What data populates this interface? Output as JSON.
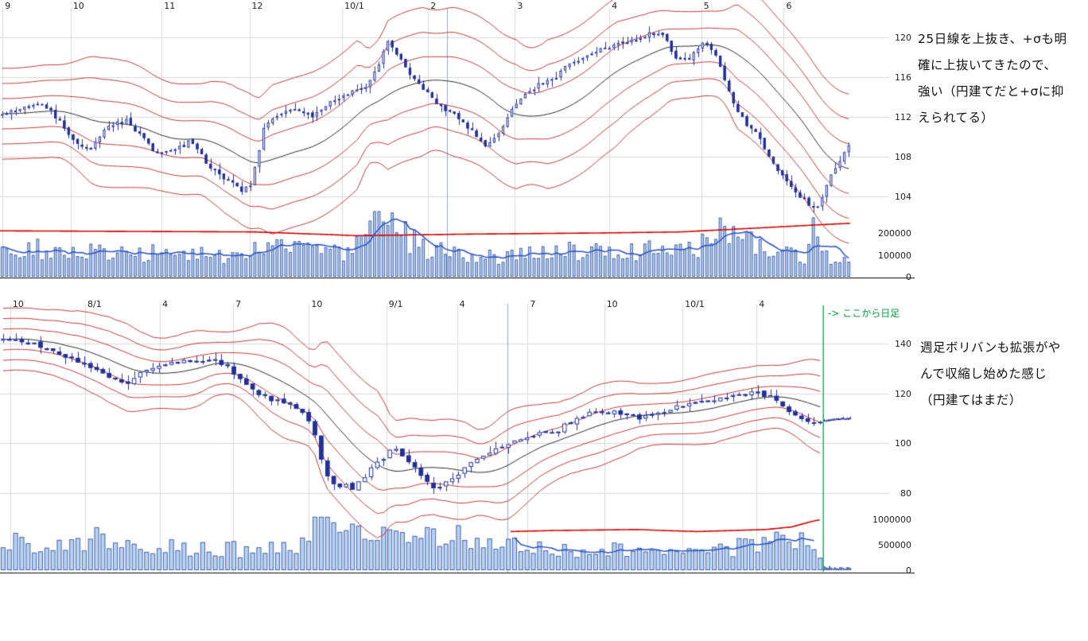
{
  "colors": {
    "background": "#ffffff",
    "grid": "#d9d9d9",
    "axis": "#000000",
    "marker_line": "#9aa7c7",
    "band_line": "#c03a3a",
    "center_line": "#2b2b2b",
    "candle_stroke": "#23309b",
    "candle_up_fill": "#ffffff",
    "volume_fill": "#b9d3f2",
    "volume_stroke": "#4a66b0",
    "volume_line_red": "#d40000",
    "volume_line_blue": "#2850c8",
    "green_line": "#00b050",
    "green_text": "#00a040",
    "note_text": "#111111",
    "tick_text": "#222222"
  },
  "chart_data": [
    {
      "type": "candlestick",
      "timeframe": "daily",
      "overlays": [
        "bollinger bands ±1σ ±2σ ±3σ (red)",
        "25-day center line (black)",
        "volume bars",
        "volume MA red",
        "volume MA blue"
      ],
      "x_ticks": [
        {
          "label": "9",
          "f": 0.003
        },
        {
          "label": "10",
          "f": 0.083
        },
        {
          "label": "11",
          "f": 0.19
        },
        {
          "label": "12",
          "f": 0.293
        },
        {
          "label": "10/1",
          "f": 0.402
        },
        {
          "label": "2",
          "f": 0.503
        },
        {
          "label": "3",
          "f": 0.605
        },
        {
          "label": "4",
          "f": 0.716
        },
        {
          "label": "5",
          "f": 0.824
        },
        {
          "label": "6",
          "f": 0.921
        }
      ],
      "price_ticks": [
        120,
        116,
        112,
        108,
        104
      ],
      "volume_ticks": [
        {
          "label": "200000",
          "value": 200000
        },
        {
          "label": "100000",
          "value": 100000
        },
        {
          "label": "0",
          "value": 0
        }
      ],
      "price_path": [
        [
          0,
          112
        ],
        [
          0.02,
          112.8
        ],
        [
          0.045,
          113.5
        ],
        [
          0.06,
          112.5
        ],
        [
          0.075,
          111
        ],
        [
          0.09,
          109.3
        ],
        [
          0.105,
          108.6
        ],
        [
          0.125,
          111.2
        ],
        [
          0.15,
          111.6
        ],
        [
          0.165,
          110.2
        ],
        [
          0.185,
          108.2
        ],
        [
          0.21,
          108.8
        ],
        [
          0.225,
          109.6
        ],
        [
          0.245,
          107
        ],
        [
          0.265,
          105.8
        ],
        [
          0.285,
          104.6
        ],
        [
          0.295,
          105.4
        ],
        [
          0.31,
          110.8
        ],
        [
          0.33,
          112.4
        ],
        [
          0.35,
          112.9
        ],
        [
          0.365,
          112
        ],
        [
          0.385,
          113.4
        ],
        [
          0.41,
          114.3
        ],
        [
          0.43,
          115
        ],
        [
          0.445,
          117.2
        ],
        [
          0.456,
          119.6
        ],
        [
          0.468,
          118.2
        ],
        [
          0.48,
          116.4
        ],
        [
          0.5,
          114.6
        ],
        [
          0.515,
          113.2
        ],
        [
          0.53,
          112.4
        ],
        [
          0.545,
          111.2
        ],
        [
          0.558,
          110.2
        ],
        [
          0.57,
          108.8
        ],
        [
          0.585,
          110.4
        ],
        [
          0.6,
          112.6
        ],
        [
          0.615,
          114.2
        ],
        [
          0.635,
          115.4
        ],
        [
          0.655,
          116.2
        ],
        [
          0.67,
          117.4
        ],
        [
          0.69,
          118.2
        ],
        [
          0.71,
          119
        ],
        [
          0.73,
          119.4
        ],
        [
          0.75,
          119.8
        ],
        [
          0.765,
          120.4
        ],
        [
          0.78,
          120
        ],
        [
          0.795,
          118
        ],
        [
          0.81,
          117.8
        ],
        [
          0.825,
          119.3
        ],
        [
          0.838,
          118.8
        ],
        [
          0.852,
          115.6
        ],
        [
          0.865,
          112.8
        ],
        [
          0.878,
          111.2
        ],
        [
          0.89,
          110.2
        ],
        [
          0.905,
          108
        ],
        [
          0.92,
          105.8
        ],
        [
          0.935,
          104.4
        ],
        [
          0.95,
          103.2
        ],
        [
          0.962,
          103
        ],
        [
          0.975,
          105.8
        ],
        [
          0.988,
          107.8
        ],
        [
          1,
          109.3
        ]
      ],
      "volume_path": [
        [
          0,
          105000
        ],
        [
          0.04,
          135000
        ],
        [
          0.08,
          120000
        ],
        [
          0.13,
          100000
        ],
        [
          0.18,
          115000
        ],
        [
          0.22,
          105000
        ],
        [
          0.27,
          95000
        ],
        [
          0.3,
          150000
        ],
        [
          0.33,
          185000
        ],
        [
          0.36,
          130000
        ],
        [
          0.4,
          100000
        ],
        [
          0.43,
          240000
        ],
        [
          0.45,
          265000
        ],
        [
          0.47,
          200000
        ],
        [
          0.5,
          130000
        ],
        [
          0.54,
          105000
        ],
        [
          0.58,
          95000
        ],
        [
          0.62,
          105000
        ],
        [
          0.66,
          115000
        ],
        [
          0.7,
          120000
        ],
        [
          0.74,
          110000
        ],
        [
          0.78,
          125000
        ],
        [
          0.82,
          140000
        ],
        [
          0.84,
          200000
        ],
        [
          0.86,
          185000
        ],
        [
          0.89,
          150000
        ],
        [
          0.92,
          115000
        ],
        [
          0.945,
          90000
        ],
        [
          0.957,
          240000
        ],
        [
          0.97,
          90000
        ],
        [
          0.985,
          70000
        ],
        [
          1,
          60000
        ]
      ],
      "volume_red_line": [
        [
          0,
          210000
        ],
        [
          0.3,
          205000
        ],
        [
          0.42,
          188000
        ],
        [
          0.55,
          195000
        ],
        [
          0.7,
          200000
        ],
        [
          0.8,
          205000
        ],
        [
          0.9,
          225000
        ],
        [
          1,
          245000
        ]
      ],
      "volume_blue_range": [
        0,
        1
      ],
      "volume_cap": 300000,
      "marker_f": 0.525,
      "segments": [
        {
          "count": 192,
          "f0": 0,
          "f1": 1,
          "volatility": 0.7,
          "bands": true,
          "band_window": 25,
          "sigma_base": 1.5,
          "sigma_cap": 2.0
        }
      ],
      "note_lines": [
        "25日線を上抜き、+σも明",
        "確に上抜いてきたので、",
        "強い（円建てだと+σに抑",
        "えられてる）"
      ]
    },
    {
      "type": "candlestick",
      "timeframe": "weekly",
      "overlays": [
        "bollinger bands ±1σ ±2σ ±3σ (red)",
        "center line (black)",
        "volume bars",
        "volume MA red",
        "volume MA blue",
        "daily candles after green marker"
      ],
      "x_ticks": [
        {
          "label": "10",
          "f": 0.012
        },
        {
          "label": "8/1",
          "f": 0.1
        },
        {
          "label": "4",
          "f": 0.188
        },
        {
          "label": "7",
          "f": 0.274
        },
        {
          "label": "10",
          "f": 0.363
        },
        {
          "label": "9/1",
          "f": 0.454
        },
        {
          "label": "4",
          "f": 0.537
        },
        {
          "label": "7",
          "f": 0.62
        },
        {
          "label": "10",
          "f": 0.71
        },
        {
          "label": "10/1",
          "f": 0.802
        },
        {
          "label": "4",
          "f": 0.889
        }
      ],
      "price_ticks": [
        140,
        120,
        100,
        80
      ],
      "volume_ticks": [
        {
          "label": "1000000",
          "value": 1000000
        },
        {
          "label": "500000",
          "value": 500000
        },
        {
          "label": "0",
          "value": 0
        }
      ],
      "price_path": [
        [
          0,
          142
        ],
        [
          0.02,
          141
        ],
        [
          0.04,
          139.5
        ],
        [
          0.06,
          137
        ],
        [
          0.08,
          134.5
        ],
        [
          0.1,
          131.5
        ],
        [
          0.12,
          129
        ],
        [
          0.135,
          125.8
        ],
        [
          0.15,
          124.5
        ],
        [
          0.17,
          130
        ],
        [
          0.19,
          131.5
        ],
        [
          0.21,
          132.5
        ],
        [
          0.23,
          133.5
        ],
        [
          0.245,
          134
        ],
        [
          0.26,
          131.5
        ],
        [
          0.275,
          128.5
        ],
        [
          0.29,
          122.5
        ],
        [
          0.305,
          119
        ],
        [
          0.32,
          117.5
        ],
        [
          0.335,
          116.5
        ],
        [
          0.35,
          114.5
        ],
        [
          0.36,
          112
        ],
        [
          0.368,
          105
        ],
        [
          0.376,
          95
        ],
        [
          0.385,
          86
        ],
        [
          0.395,
          81.5
        ],
        [
          0.405,
          83
        ],
        [
          0.415,
          82
        ],
        [
          0.425,
          85
        ],
        [
          0.44,
          91
        ],
        [
          0.455,
          96
        ],
        [
          0.465,
          97.5
        ],
        [
          0.478,
          93.5
        ],
        [
          0.49,
          88.5
        ],
        [
          0.502,
          84.5
        ],
        [
          0.512,
          81.5
        ],
        [
          0.525,
          84.5
        ],
        [
          0.54,
          88.5
        ],
        [
          0.555,
          92.5
        ],
        [
          0.57,
          96
        ],
        [
          0.585,
          98.5
        ],
        [
          0.6,
          100.5
        ],
        [
          0.62,
          103
        ],
        [
          0.64,
          104.5
        ],
        [
          0.655,
          105.5
        ],
        [
          0.67,
          108
        ],
        [
          0.685,
          111
        ],
        [
          0.7,
          113.5
        ],
        [
          0.715,
          113
        ],
        [
          0.73,
          112
        ],
        [
          0.745,
          110.8
        ],
        [
          0.758,
          110.4
        ],
        [
          0.77,
          112
        ],
        [
          0.785,
          114
        ],
        [
          0.8,
          115.5
        ],
        [
          0.815,
          116.5
        ],
        [
          0.83,
          117.5
        ],
        [
          0.845,
          118.5
        ],
        [
          0.862,
          119
        ],
        [
          0.88,
          119.8
        ],
        [
          0.9,
          119.6
        ],
        [
          0.912,
          117.5
        ],
        [
          0.925,
          113.5
        ],
        [
          0.938,
          110
        ],
        [
          0.95,
          108
        ],
        [
          0.958,
          107.3
        ],
        [
          0.968,
          109.2
        ],
        [
          0.98,
          109.8
        ],
        [
          1,
          110.2
        ]
      ],
      "volume_path": [
        [
          0,
          520000
        ],
        [
          0.03,
          560000
        ],
        [
          0.06,
          500000
        ],
        [
          0.09,
          540000
        ],
        [
          0.115,
          620000
        ],
        [
          0.14,
          520000
        ],
        [
          0.17,
          480000
        ],
        [
          0.2,
          440000
        ],
        [
          0.23,
          470000
        ],
        [
          0.26,
          430000
        ],
        [
          0.29,
          400000
        ],
        [
          0.32,
          420000
        ],
        [
          0.35,
          470000
        ],
        [
          0.368,
          950000
        ],
        [
          0.385,
          820000
        ],
        [
          0.4,
          720000
        ],
        [
          0.42,
          650000
        ],
        [
          0.445,
          700000
        ],
        [
          0.47,
          620000
        ],
        [
          0.5,
          640000
        ],
        [
          0.52,
          720000
        ],
        [
          0.545,
          640000
        ],
        [
          0.57,
          560000
        ],
        [
          0.6,
          520000
        ],
        [
          0.63,
          480000
        ],
        [
          0.66,
          440000
        ],
        [
          0.69,
          410000
        ],
        [
          0.72,
          390000
        ],
        [
          0.75,
          370000
        ],
        [
          0.78,
          360000
        ],
        [
          0.81,
          380000
        ],
        [
          0.84,
          420000
        ],
        [
          0.87,
          460000
        ],
        [
          0.9,
          520000
        ],
        [
          0.93,
          640000
        ],
        [
          0.95,
          600000
        ],
        [
          0.96,
          560000
        ],
        [
          0.9675,
          70000
        ],
        [
          0.98,
          55000
        ],
        [
          1,
          45000
        ]
      ],
      "volume_red_line": [
        [
          0.6,
          760000
        ],
        [
          0.65,
          780000
        ],
        [
          0.7,
          790000
        ],
        [
          0.75,
          800000
        ],
        [
          0.78,
          780000
        ],
        [
          0.82,
          760000
        ],
        [
          0.86,
          780000
        ],
        [
          0.9,
          800000
        ],
        [
          0.93,
          850000
        ],
        [
          0.952,
          950000
        ],
        [
          0.963,
          990000
        ]
      ],
      "volume_blue_range": [
        0.6,
        0.963
      ],
      "volume_cap": 1050000,
      "marker_f": 0.596,
      "daily_start_f": 0.9675,
      "daily_start_label": "-> ここから日足",
      "segments": [
        {
          "count": 132,
          "f0": 0,
          "f1": 0.9675,
          "volatility": 3.0,
          "bands": true,
          "band_window": 13,
          "sigma_base": 4.0,
          "sigma_cap": 9.0
        },
        {
          "count": 16,
          "f0": 0.9675,
          "f1": 1,
          "volatility": 0.6,
          "bands": false
        }
      ],
      "note_lines": [
        "週足ボリバンも拡張がや",
        "んで収縮し始めた感じ",
        "（円建てはまだ）"
      ]
    }
  ]
}
